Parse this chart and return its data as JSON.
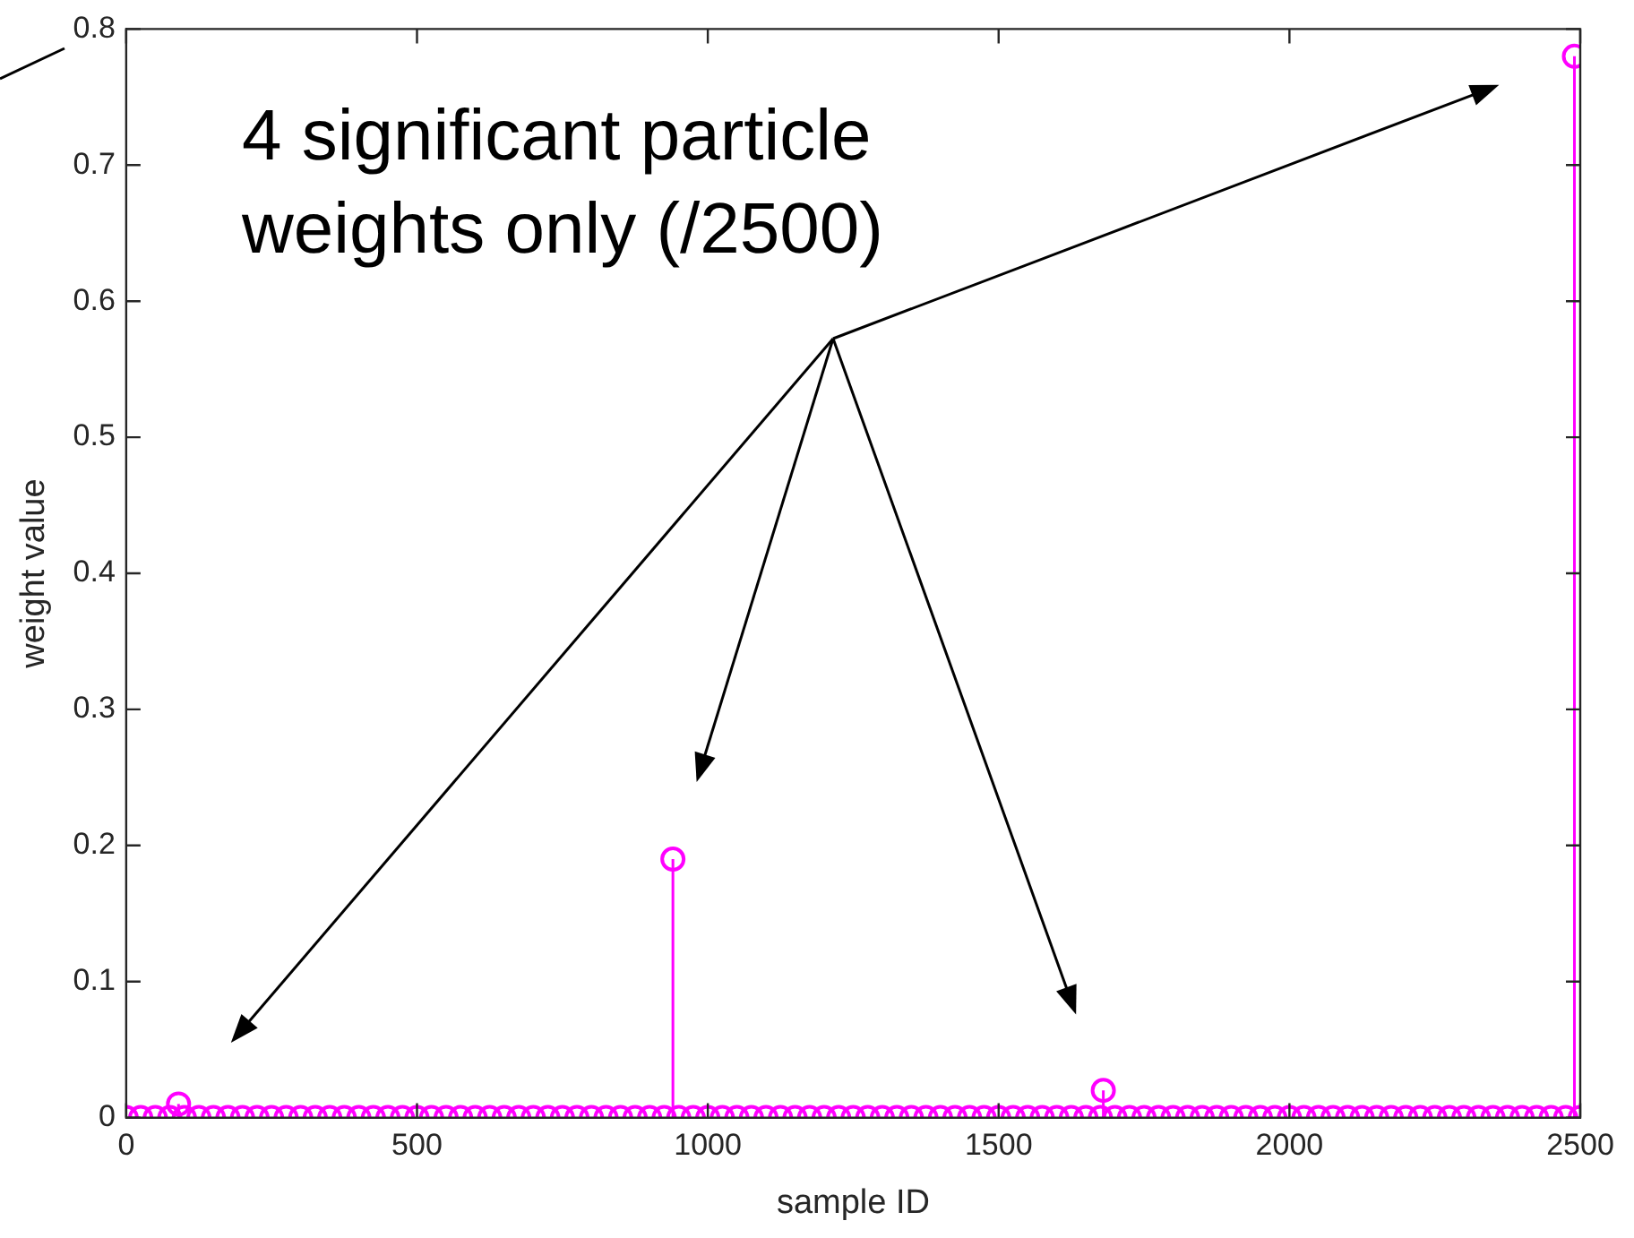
{
  "chart_data": {
    "type": "lollipop",
    "xlabel": "sample ID",
    "ylabel": "weight value",
    "annotations": [
      "4 significant particle weights only (/2500)"
    ],
    "x": [
      0,
      25,
      50,
      75,
      90,
      100,
      125,
      150,
      175,
      200,
      225,
      250,
      275,
      300,
      325,
      350,
      375,
      400,
      425,
      450,
      475,
      500,
      525,
      550,
      575,
      600,
      625,
      650,
      675,
      700,
      725,
      750,
      775,
      800,
      825,
      850,
      875,
      900,
      925,
      940,
      950,
      975,
      1000,
      1025,
      1050,
      1075,
      1100,
      1125,
      1150,
      1175,
      1200,
      1225,
      1250,
      1275,
      1300,
      1325,
      1350,
      1375,
      1400,
      1425,
      1450,
      1475,
      1500,
      1525,
      1550,
      1575,
      1600,
      1625,
      1650,
      1675,
      1680,
      1700,
      1725,
      1750,
      1775,
      1800,
      1825,
      1850,
      1875,
      1900,
      1925,
      1950,
      1975,
      2000,
      2025,
      2050,
      2075,
      2100,
      2125,
      2150,
      2175,
      2200,
      2225,
      2250,
      2275,
      2300,
      2325,
      2350,
      2375,
      2400,
      2425,
      2450,
      2475,
      2490,
      2500
    ],
    "values": [
      0,
      0,
      0,
      0,
      0.01,
      0,
      0,
      0,
      0,
      0,
      0,
      0,
      0,
      0,
      0,
      0,
      0,
      0,
      0,
      0,
      0,
      0,
      0,
      0,
      0,
      0,
      0,
      0,
      0,
      0,
      0,
      0,
      0,
      0,
      0,
      0,
      0,
      0,
      0,
      0.19,
      0,
      0,
      0,
      0,
      0,
      0,
      0,
      0,
      0,
      0,
      0,
      0,
      0,
      0,
      0,
      0,
      0,
      0,
      0,
      0,
      0,
      0,
      0,
      0,
      0,
      0,
      0,
      0,
      0,
      0,
      0.02,
      0,
      0,
      0,
      0,
      0,
      0,
      0,
      0,
      0,
      0,
      0,
      0,
      0,
      0,
      0,
      0,
      0,
      0,
      0,
      0,
      0,
      0,
      0,
      0,
      0,
      0,
      0,
      0,
      0,
      0,
      0,
      0,
      0.78,
      0
    ],
    "color": "#ff00ff",
    "marker": "circle",
    "xlim": [
      0,
      2500
    ],
    "xticks": [
      0,
      500,
      1000,
      1500,
      2000,
      2500
    ],
    "ylim": [
      0,
      0.8
    ],
    "yticks": [
      0,
      0.1,
      0.2,
      0.3,
      0.4,
      0.5,
      0.6,
      0.7,
      0.8
    ]
  }
}
